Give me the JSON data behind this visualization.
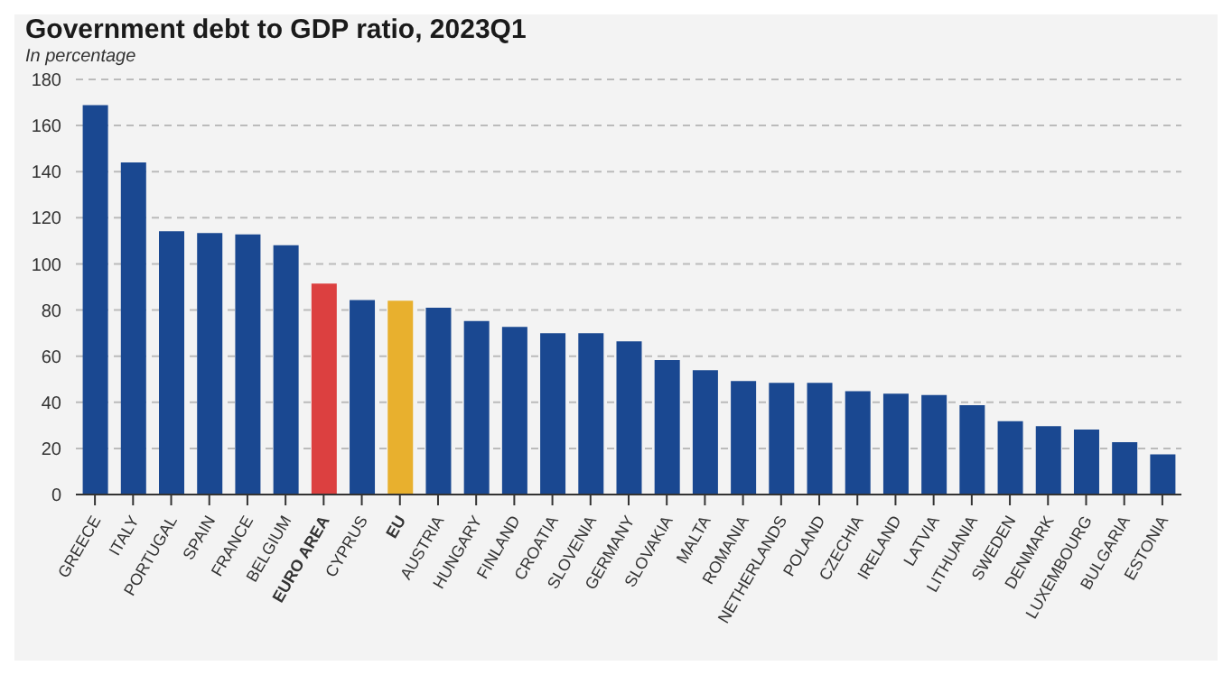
{
  "chart_data": {
    "type": "bar",
    "title": "Government debt to GDP ratio, 2023Q1",
    "subtitle": "In percentage",
    "categories": [
      "GREECE",
      "ITALY",
      "PORTUGAL",
      "SPAIN",
      "FRANCE",
      "BELGIUM",
      "EURO AREA",
      "CYPRUS",
      "EU",
      "AUSTRIA",
      "HUNGARY",
      "FINLAND",
      "CROATIA",
      "SLOVENIA",
      "GERMANY",
      "SLOVAKIA",
      "MALTA",
      "ROMANIA",
      "NETHERLANDS",
      "POLAND",
      "CZECHIA",
      "IRELAND",
      "LATVIA",
      "LITHUANIA",
      "SWEDEN",
      "DENMARK",
      "LUXEMBOURG",
      "BULGARIA",
      "ESTONIA"
    ],
    "values": [
      168.8,
      144,
      114.2,
      113.4,
      112.8,
      108.1,
      91.5,
      84.3,
      84,
      81,
      75.2,
      72.7,
      69.9,
      69.9,
      66.4,
      58.3,
      53.9,
      49.2,
      48.4,
      48.4,
      44.8,
      43.7,
      43.1,
      38.7,
      31.8,
      29.6,
      28.2,
      22.7,
      17.4
    ],
    "colors": [
      "#1a4891",
      "#1a4891",
      "#1a4891",
      "#1a4891",
      "#1a4891",
      "#1a4891",
      "#dc4040",
      "#1a4891",
      "#e8b02e",
      "#1a4891",
      "#1a4891",
      "#1a4891",
      "#1a4891",
      "#1a4891",
      "#1a4891",
      "#1a4891",
      "#1a4891",
      "#1a4891",
      "#1a4891",
      "#1a4891",
      "#1a4891",
      "#1a4891",
      "#1a4891",
      "#1a4891",
      "#1a4891",
      "#1a4891",
      "#1a4891",
      "#1a4891",
      "#1a4891"
    ],
    "ylim": [
      0,
      180
    ],
    "yticks": [
      0,
      20,
      40,
      60,
      80,
      100,
      120,
      140,
      160,
      180
    ],
    "grid": "y"
  }
}
